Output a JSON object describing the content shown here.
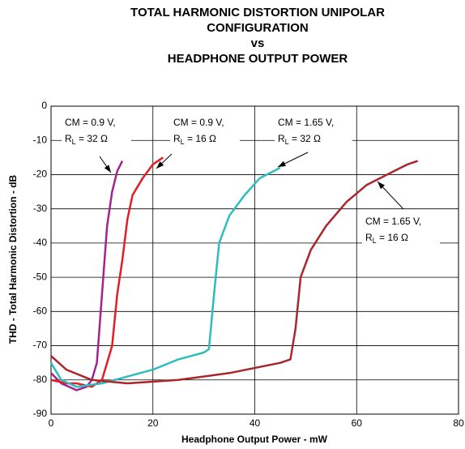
{
  "chart_data": {
    "type": "line",
    "title": [
      "TOTAL HARMONIC DISTORTION UNIPOLAR",
      "CONFIGURATION",
      "vs",
      "HEADPHONE OUTPUT POWER"
    ],
    "x_label": "Headphone Output Power - mW",
    "y_label": "THD - Total Harmonic Distortion - dB",
    "xlim": [
      0,
      80
    ],
    "xticks": [
      0,
      20,
      40,
      60,
      80
    ],
    "ylim": [
      -90,
      0
    ],
    "yticks": [
      0,
      -10,
      -20,
      -30,
      -40,
      -50,
      -60,
      -70,
      -80,
      -90
    ],
    "grid": true,
    "series": [
      {
        "label": [
          "CM = 0.9 V,",
          "R",
          "L",
          " = 32 Ω"
        ],
        "color": "#a3238e",
        "x": [
          0,
          2,
          5,
          7,
          8,
          9,
          10,
          11,
          12,
          13,
          14
        ],
        "values": [
          -78,
          -81,
          -83,
          -82,
          -80,
          -75,
          -55,
          -35,
          -25,
          -19,
          -16
        ]
      },
      {
        "label": [
          "CM = 0.9 V,",
          "R",
          "L",
          " = 16 Ω"
        ],
        "color": "#e31e26",
        "x": [
          0,
          3,
          5,
          8,
          10,
          12,
          13,
          14,
          15,
          16,
          18,
          20,
          22
        ],
        "values": [
          -80,
          -81,
          -81,
          -82,
          -80,
          -70,
          -55,
          -45,
          -33,
          -26,
          -21,
          -17,
          -15
        ]
      },
      {
        "label": [
          "CM = 1.65 V,",
          "R",
          "L",
          " = 32 Ω"
        ],
        "color": "#2ebdbd",
        "x": [
          0,
          2,
          5,
          10,
          15,
          20,
          25,
          30,
          31,
          32,
          33,
          35,
          38,
          41,
          45
        ],
        "values": [
          -75,
          -80,
          -82,
          -81,
          -79,
          -77,
          -74,
          -72,
          -71,
          -55,
          -40,
          -32,
          -26,
          -21,
          -18
        ]
      },
      {
        "label": [
          "CM = 1.65 V,",
          "R",
          "L",
          " = 16 Ω"
        ],
        "color": "#a8262c",
        "x": [
          0,
          3,
          8,
          15,
          25,
          35,
          45,
          47,
          48,
          49,
          51,
          54,
          58,
          62,
          66,
          70,
          72
        ],
        "values": [
          -73,
          -77,
          -80,
          -81,
          -80,
          -78,
          -75,
          -74,
          -65,
          -50,
          -42,
          -35,
          -28,
          -23,
          -20,
          -17,
          -16
        ]
      }
    ]
  }
}
